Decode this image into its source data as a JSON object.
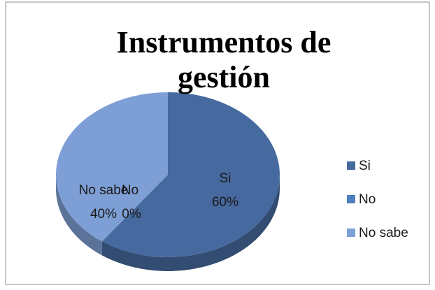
{
  "chart_data": {
    "type": "pie",
    "title": "Instrumentos de gestión",
    "categories": [
      "Si",
      "No",
      "No sabe"
    ],
    "values": [
      60,
      0,
      40
    ],
    "value_labels": [
      "60%",
      "0%",
      "40%"
    ],
    "colors": [
      "#46699f",
      "#4f7fc0",
      "#7e9fd5"
    ],
    "three_d": true,
    "legend": "right"
  }
}
